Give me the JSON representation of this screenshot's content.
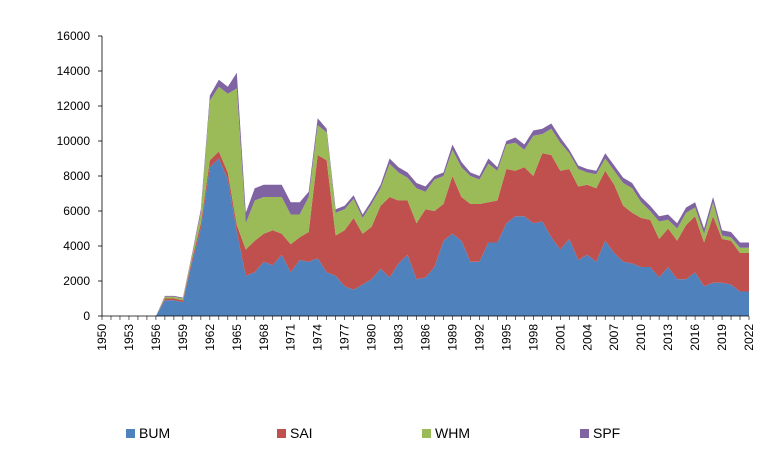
{
  "chart_data": {
    "type": "area",
    "stacked": true,
    "title": "",
    "xlabel": "",
    "ylabel": "",
    "ylim": [
      0,
      16000
    ],
    "xlim": [
      1950,
      2022
    ],
    "y_ticks": [
      "0",
      "2000",
      "4000",
      "6000",
      "8000",
      "10000",
      "12000",
      "14000",
      "16000"
    ],
    "y_tick_values": [
      0,
      2000,
      4000,
      6000,
      8000,
      10000,
      12000,
      14000,
      16000
    ],
    "x_ticks": [
      "1950",
      "1953",
      "1956",
      "1959",
      "1962",
      "1965",
      "1968",
      "1971",
      "1974",
      "1977",
      "1980",
      "1983",
      "1986",
      "1989",
      "1992",
      "1995",
      "1998",
      "2001",
      "2004",
      "2007",
      "2010",
      "2013",
      "2016",
      "2019",
      "2022"
    ],
    "x_tick_values": [
      1950,
      1953,
      1956,
      1959,
      1962,
      1965,
      1968,
      1971,
      1974,
      1977,
      1980,
      1983,
      1986,
      1989,
      1992,
      1995,
      1998,
      2001,
      2004,
      2007,
      2010,
      2013,
      2016,
      2019,
      2022
    ],
    "grid": false,
    "legend_position": "bottom",
    "x": [
      1950,
      1951,
      1952,
      1953,
      1954,
      1955,
      1956,
      1957,
      1958,
      1959,
      1960,
      1961,
      1962,
      1963,
      1964,
      1965,
      1966,
      1967,
      1968,
      1969,
      1970,
      1971,
      1972,
      1973,
      1974,
      1975,
      1976,
      1977,
      1978,
      1979,
      1980,
      1981,
      1982,
      1983,
      1984,
      1985,
      1986,
      1987,
      1988,
      1989,
      1990,
      1991,
      1992,
      1993,
      1994,
      1995,
      1996,
      1997,
      1998,
      1999,
      2000,
      2001,
      2002,
      2003,
      2004,
      2005,
      2006,
      2007,
      2008,
      2009,
      2010,
      2011,
      2012,
      2013,
      2014,
      2015,
      2016,
      2017,
      2018,
      2019,
      2020,
      2021,
      2022
    ],
    "series": [
      {
        "name": "BUM",
        "color": "#4f81bd",
        "values": [
          0,
          0,
          0,
          0,
          0,
          0,
          0,
          900,
          900,
          800,
          3000,
          5000,
          8500,
          9000,
          7800,
          4800,
          2300,
          2500,
          3100,
          2900,
          3500,
          2500,
          3200,
          3100,
          3300,
          2500,
          2300,
          1700,
          1500,
          1800,
          2100,
          2700,
          2200,
          3000,
          3500,
          2100,
          2200,
          2800,
          4300,
          4700,
          4300,
          3100,
          3100,
          4200,
          4200,
          5300,
          5700,
          5700,
          5300,
          5400,
          4500,
          3800,
          4400,
          3200,
          3500,
          3100,
          4300,
          3600,
          3100,
          3000,
          2800,
          2800,
          2200,
          2800,
          2100,
          2100,
          2500,
          1700,
          1900,
          1900,
          1800,
          1400,
          1400
        ]
      },
      {
        "name": "SAI",
        "color": "#c0504d",
        "values": [
          0,
          0,
          0,
          0,
          0,
          0,
          0,
          100,
          100,
          100,
          200,
          300,
          400,
          400,
          400,
          400,
          1500,
          1800,
          1600,
          2000,
          1200,
          1600,
          1300,
          1700,
          5900,
          6400,
          2300,
          3200,
          4100,
          2900,
          3000,
          3600,
          4600,
          3600,
          3100,
          3200,
          3900,
          3200,
          2100,
          3300,
          2500,
          3300,
          3300,
          2300,
          2400,
          3100,
          2600,
          2800,
          2700,
          3900,
          4700,
          4500,
          4000,
          4200,
          4000,
          4200,
          4000,
          3900,
          3200,
          2900,
          2800,
          2700,
          2200,
          2200,
          2200,
          3100,
          3200,
          2500,
          3800,
          2500,
          2500,
          2200,
          2200
        ]
      },
      {
        "name": "WHM",
        "color": "#9bbb59",
        "values": [
          0,
          0,
          0,
          0,
          0,
          0,
          0,
          100,
          100,
          100,
          200,
          600,
          3400,
          3700,
          4500,
          7800,
          1500,
          2300,
          2100,
          1900,
          2100,
          1700,
          1300,
          2000,
          1700,
          1600,
          1300,
          1200,
          1100,
          900,
          1300,
          1000,
          1900,
          1600,
          1300,
          2000,
          1000,
          1800,
          1600,
          1500,
          1700,
          1600,
          1400,
          2200,
          1700,
          1400,
          1600,
          1000,
          2300,
          1100,
          1500,
          1600,
          900,
          1000,
          700,
          800,
          700,
          800,
          1300,
          1400,
          900,
          500,
          1000,
          500,
          700,
          700,
          500,
          500,
          800,
          200,
          200,
          300,
          300
        ]
      },
      {
        "name": "SPF",
        "color": "#8064a2",
        "values": [
          0,
          0,
          0,
          0,
          0,
          0,
          0,
          50,
          50,
          50,
          100,
          200,
          300,
          400,
          400,
          900,
          600,
          700,
          700,
          700,
          700,
          700,
          700,
          300,
          400,
          200,
          200,
          200,
          200,
          200,
          200,
          200,
          300,
          300,
          300,
          300,
          300,
          200,
          200,
          300,
          300,
          200,
          200,
          300,
          200,
          200,
          300,
          300,
          300,
          300,
          300,
          300,
          200,
          200,
          200,
          200,
          300,
          300,
          300,
          300,
          300,
          300,
          300,
          300,
          300,
          300,
          300,
          300,
          300,
          300,
          300,
          300,
          300
        ]
      }
    ]
  }
}
